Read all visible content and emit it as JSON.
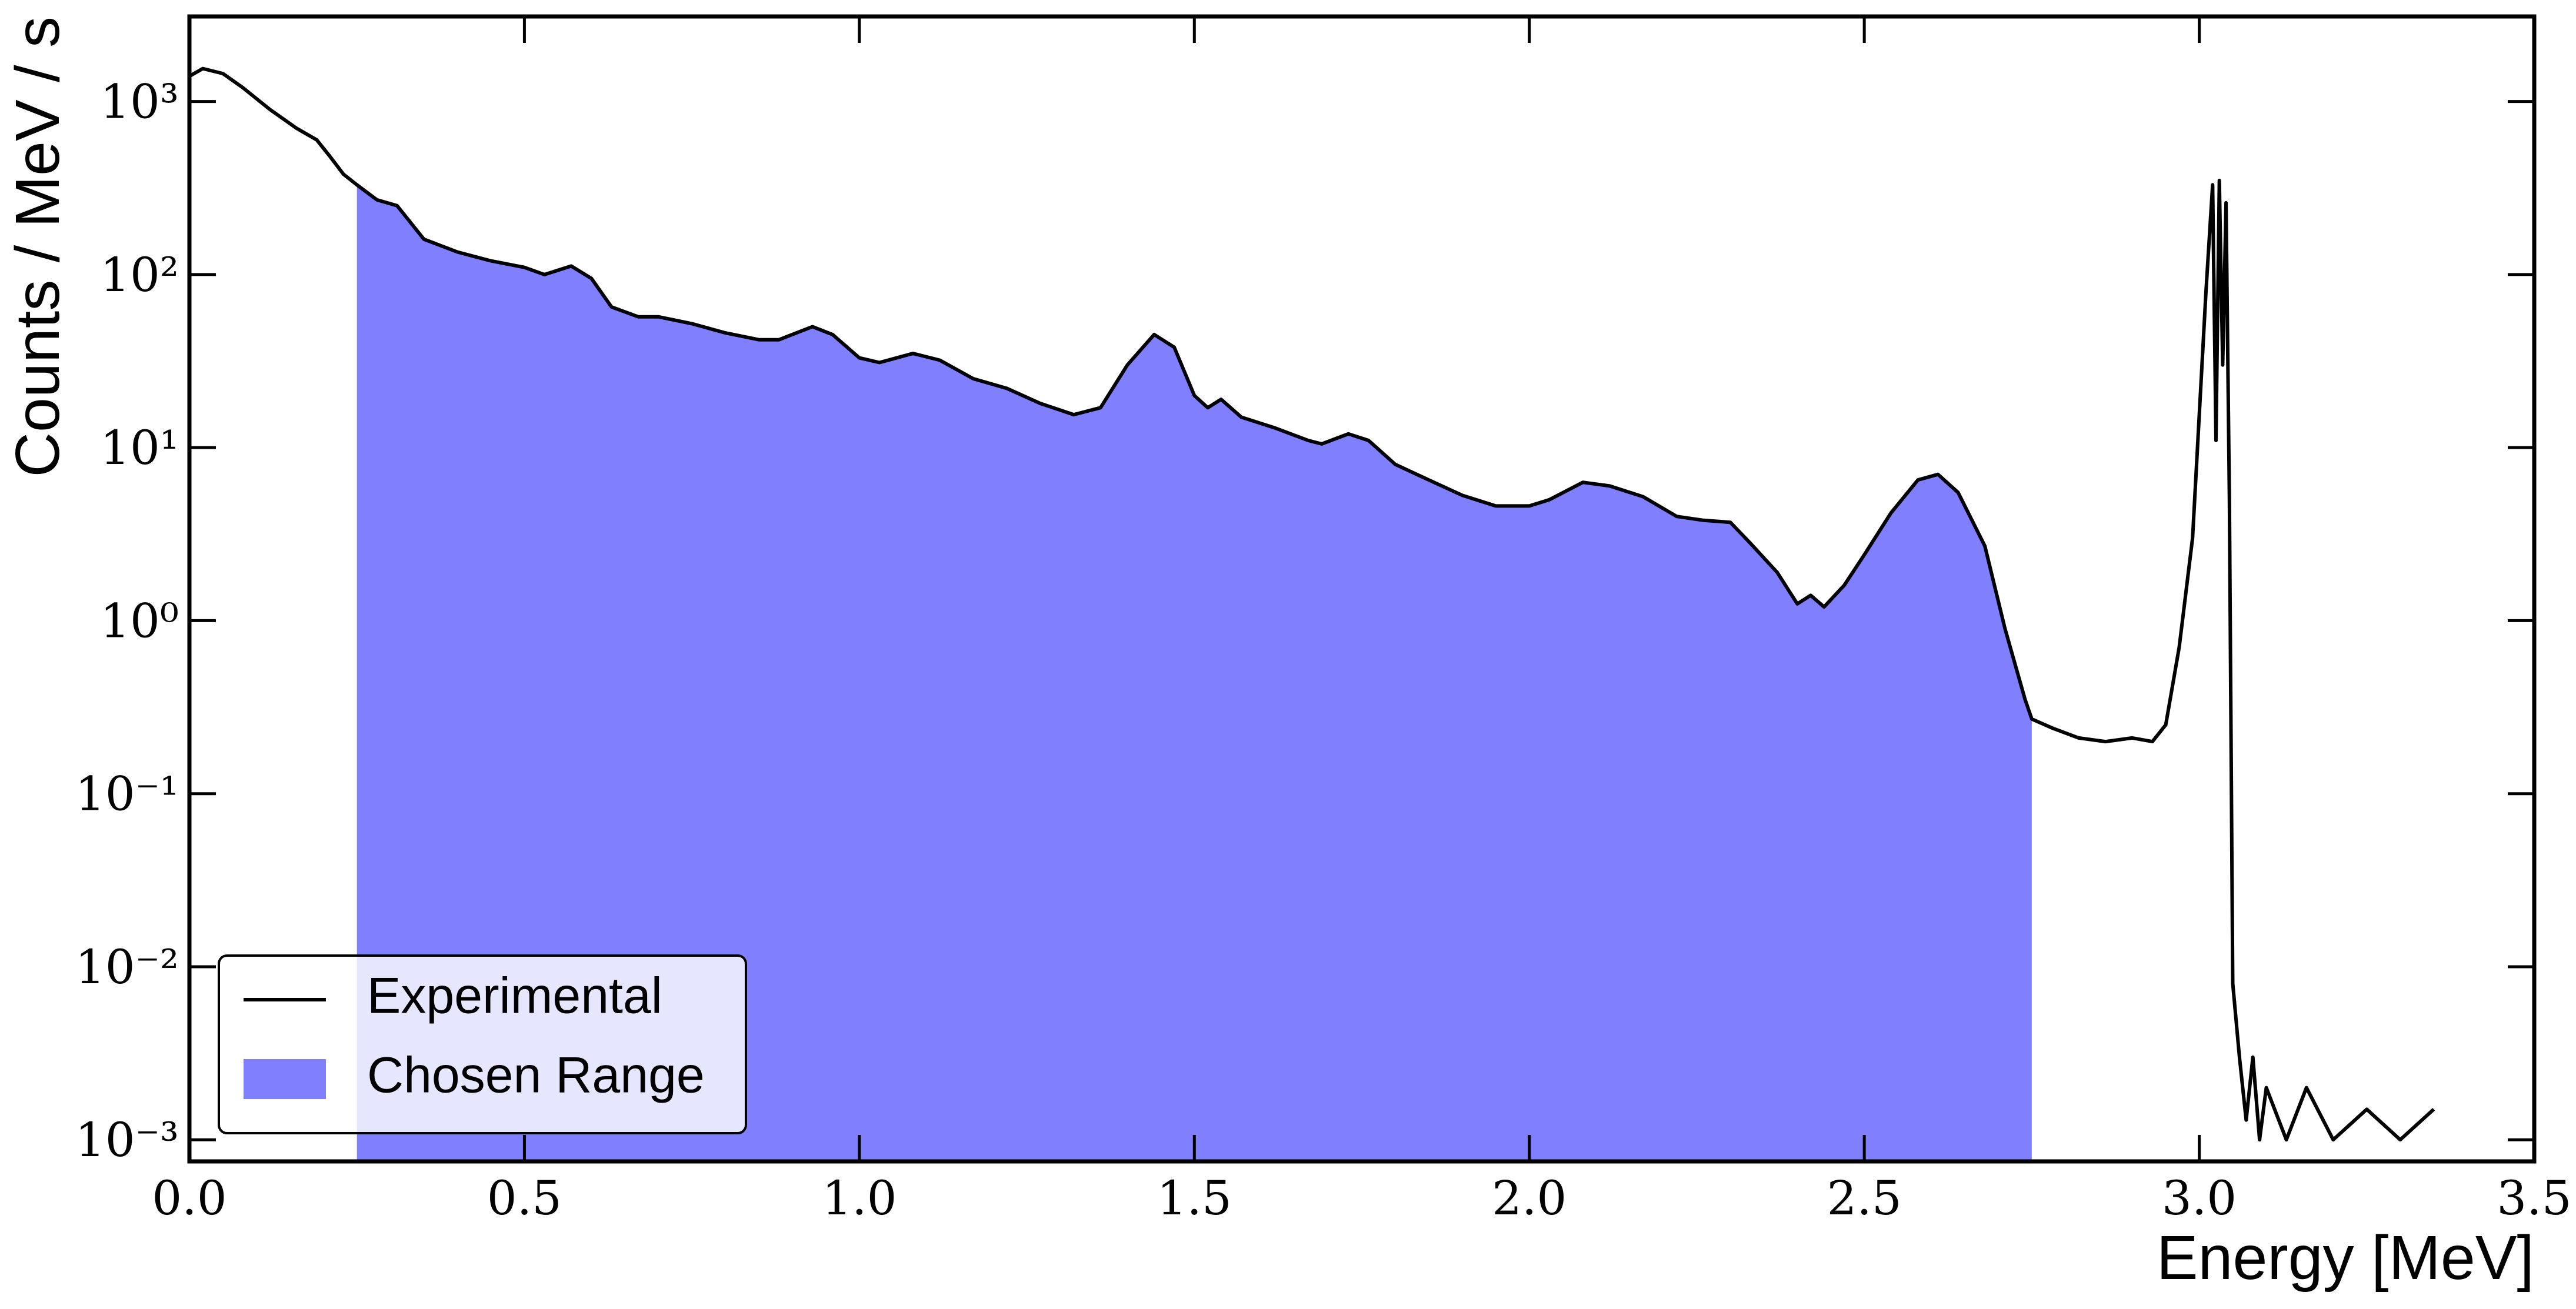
{
  "chart_data": {
    "type": "line",
    "xlabel": "Energy [MeV]",
    "ylabel": "Counts / MeV / s",
    "xlim": [
      0,
      3.5
    ],
    "ylim": [
      0.00075,
      3100
    ],
    "yscale": "log",
    "xticks": [
      {
        "value": 0,
        "label": "0.0"
      },
      0.5,
      {
        "value": 1,
        "label": "1.0"
      },
      1.5,
      {
        "value": 2,
        "label": "2.0"
      },
      2.5,
      {
        "value": 3,
        "label": "3.0"
      },
      3.5
    ],
    "yticks": [
      {
        "value": 0.001,
        "label": "10⁻³"
      },
      {
        "value": 0.01,
        "label": "10⁻²"
      },
      {
        "value": 0.1,
        "label": "10⁻¹"
      },
      {
        "value": 1,
        "label": "10⁰"
      },
      {
        "value": 10,
        "label": "10¹"
      },
      {
        "value": 100,
        "label": "10²"
      },
      {
        "value": 1000,
        "label": "10³"
      }
    ],
    "legend": "lower left",
    "series": [
      {
        "name": "Experimental",
        "type": "line",
        "color": "#000000",
        "x": [
          0.0,
          0.02,
          0.05,
          0.08,
          0.12,
          0.16,
          0.19,
          0.21,
          0.23,
          0.25,
          0.28,
          0.31,
          0.33,
          0.35,
          0.4,
          0.45,
          0.5,
          0.53,
          0.57,
          0.6,
          0.63,
          0.67,
          0.7,
          0.75,
          0.8,
          0.85,
          0.88,
          0.93,
          0.96,
          1.0,
          1.03,
          1.08,
          1.12,
          1.17,
          1.22,
          1.27,
          1.32,
          1.36,
          1.4,
          1.44,
          1.47,
          1.5,
          1.52,
          1.54,
          1.57,
          1.62,
          1.67,
          1.69,
          1.73,
          1.76,
          1.8,
          1.85,
          1.9,
          1.95,
          2.0,
          2.03,
          2.08,
          2.12,
          2.17,
          2.22,
          2.26,
          2.3,
          2.33,
          2.37,
          2.4,
          2.42,
          2.44,
          2.47,
          2.5,
          2.54,
          2.58,
          2.61,
          2.64,
          2.68,
          2.71,
          2.74,
          2.75,
          2.78,
          2.82,
          2.86,
          2.9,
          2.93,
          2.95,
          2.97,
          2.99,
          3.01,
          3.02,
          3.025,
          3.03,
          3.035,
          3.04,
          3.045,
          3.05,
          3.06,
          3.07,
          3.08,
          3.09,
          3.1,
          3.13,
          3.16,
          3.2,
          3.25,
          3.3,
          3.35
        ],
        "values": [
          1400,
          1550,
          1450,
          1200,
          900,
          700,
          600,
          480,
          380,
          330,
          270,
          250,
          200,
          160,
          135,
          120,
          110,
          100,
          112,
          95,
          65,
          57,
          57,
          52,
          46,
          42,
          42,
          50,
          45,
          33,
          31,
          35,
          32,
          25,
          22,
          18,
          15.5,
          17,
          30,
          45,
          38,
          20,
          17,
          19,
          15,
          13,
          11,
          10.5,
          12,
          11,
          8,
          6.5,
          5.3,
          4.6,
          4.6,
          5,
          6.3,
          6,
          5.2,
          4,
          3.8,
          3.7,
          2.8,
          1.9,
          1.25,
          1.4,
          1.2,
          1.6,
          2.4,
          4.2,
          6.5,
          7.0,
          5.5,
          2.7,
          0.9,
          0.35,
          0.27,
          0.24,
          0.21,
          0.2,
          0.21,
          0.2,
          0.25,
          0.7,
          3,
          80,
          330,
          11,
          350,
          30,
          260,
          5,
          0.008,
          0.003,
          0.0013,
          0.003,
          0.001,
          0.002,
          0.001,
          0.002,
          0.001,
          0.0015,
          0.001,
          0.0015
        ]
      },
      {
        "name": "Chosen Range",
        "type": "area",
        "color": "#8080ff",
        "x": [
          0.25,
          0.28,
          0.31,
          0.33,
          0.35,
          0.4,
          0.45,
          0.5,
          0.53,
          0.57,
          0.6,
          0.63,
          0.67,
          0.7,
          0.75,
          0.8,
          0.85,
          0.88,
          0.93,
          0.96,
          1.0,
          1.03,
          1.08,
          1.12,
          1.17,
          1.22,
          1.27,
          1.32,
          1.36,
          1.4,
          1.44,
          1.47,
          1.5,
          1.52,
          1.54,
          1.57,
          1.62,
          1.67,
          1.69,
          1.73,
          1.76,
          1.8,
          1.85,
          1.9,
          1.95,
          2.0,
          2.03,
          2.08,
          2.12,
          2.17,
          2.22,
          2.26,
          2.3,
          2.33,
          2.37,
          2.4,
          2.42,
          2.44,
          2.47,
          2.5,
          2.54,
          2.58,
          2.61,
          2.64,
          2.68,
          2.71,
          2.74,
          2.75
        ],
        "values": [
          330,
          270,
          250,
          200,
          160,
          135,
          120,
          110,
          100,
          112,
          95,
          65,
          57,
          57,
          52,
          46,
          42,
          42,
          50,
          45,
          33,
          31,
          35,
          32,
          25,
          22,
          18,
          15.5,
          17,
          30,
          45,
          38,
          20,
          17,
          19,
          15,
          13,
          11,
          10.5,
          12,
          11,
          8,
          6.5,
          5.3,
          4.6,
          4.6,
          5,
          6.3,
          6,
          5.2,
          4,
          3.8,
          3.7,
          2.8,
          1.9,
          1.25,
          1.4,
          1.2,
          1.6,
          2.4,
          4.2,
          6.5,
          7.0,
          5.5,
          2.7,
          0.9,
          0.35,
          0.27
        ]
      }
    ]
  }
}
